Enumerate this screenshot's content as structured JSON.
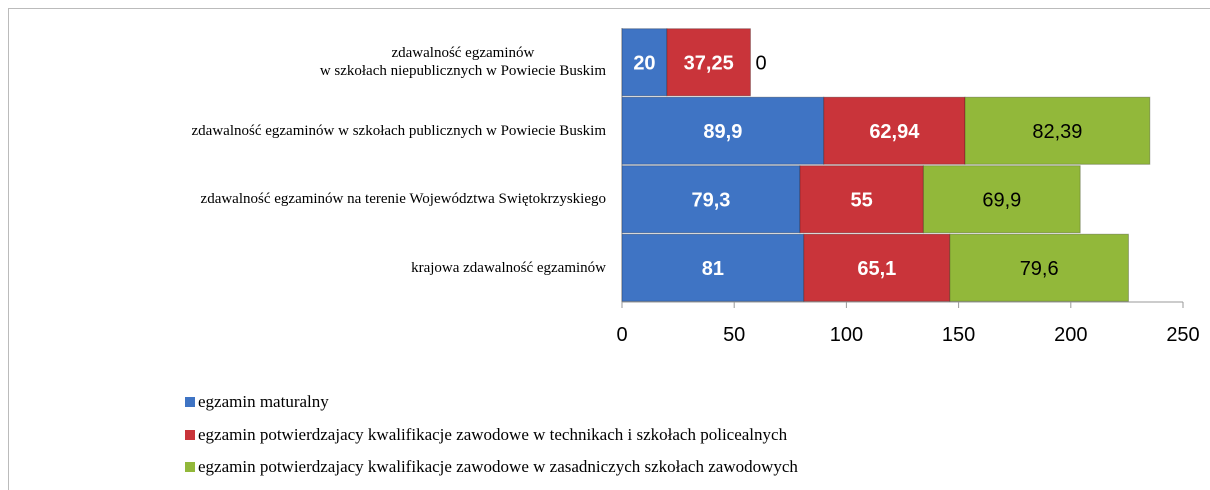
{
  "chart_data": {
    "type": "stacked_barh",
    "categories": [
      "zdawalność egzaminów\nw szkołach niepublicznych w Powiecie Buskim",
      "zdawalność egzaminów w szkołach publicznych w Powiecie Buskim",
      "zdawalność egzaminów na terenie Województwa Swiętokrzyskiego",
      "krajowa zdawalność egzaminów"
    ],
    "series": [
      {
        "name": "egzamin maturalny",
        "color": "#3f74c4",
        "label_color": "#ffffff",
        "values": [
          20,
          89.9,
          79.3,
          81
        ],
        "value_labels": [
          "20",
          "89,9",
          "79,3",
          "81"
        ]
      },
      {
        "name": "egzamin potwierdzajacy kwalifikacje zawodowe w technikach i szkołach policealnych",
        "color": "#c9343a",
        "label_color": "#ffffff",
        "values": [
          37.25,
          62.94,
          55,
          65.1
        ],
        "value_labels": [
          "37,25",
          "62,94",
          "55",
          "65,1"
        ]
      },
      {
        "name": "egzamin potwierdzajacy kwalifikacje zawodowe w zasadniczych szkołach zawodowych",
        "color": "#92b83a",
        "label_color": "#000000",
        "values": [
          0,
          82.39,
          69.9,
          79.6
        ],
        "value_labels": [
          "0",
          "82,39",
          "69,9",
          "79,6"
        ]
      }
    ],
    "xlim": [
      0,
      250
    ],
    "xticks": [
      0,
      50,
      100,
      150,
      200,
      250
    ]
  }
}
